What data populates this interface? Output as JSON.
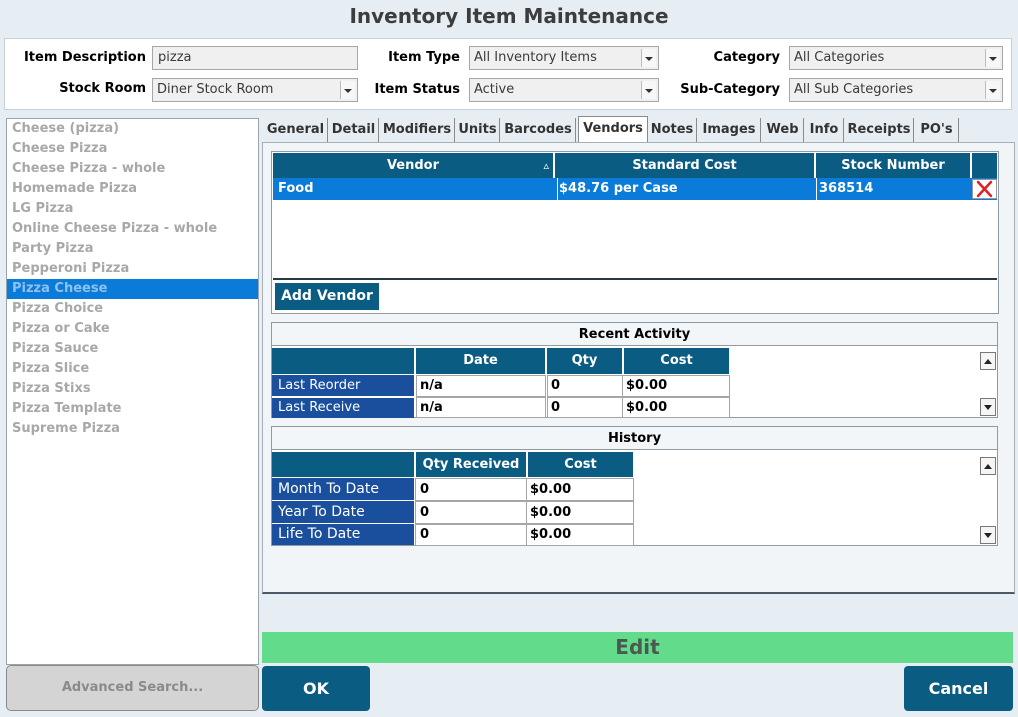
{
  "window": {
    "title": "Inventory Item Maintenance"
  },
  "filters": {
    "item_description_label": "Item Description",
    "item_description_value": "pizza",
    "item_type_label": "Item Type",
    "item_type_value": "All Inventory Items",
    "category_label": "Category",
    "category_value": "All Categories",
    "stock_room_label": "Stock Room",
    "stock_room_value": "Diner Stock Room",
    "item_status_label": "Item Status",
    "item_status_value": "Active",
    "sub_category_label": "Sub-Category",
    "sub_category_value": "All Sub Categories"
  },
  "items": [
    {
      "label": "Cheese (pizza)"
    },
    {
      "label": "Cheese Pizza"
    },
    {
      "label": "Cheese Pizza - whole"
    },
    {
      "label": "Homemade Pizza"
    },
    {
      "label": "LG Pizza"
    },
    {
      "label": "Online Cheese Pizza - whole"
    },
    {
      "label": "Party Pizza"
    },
    {
      "label": "Pepperoni Pizza"
    },
    {
      "label": "Pizza Cheese",
      "selected": true
    },
    {
      "label": "Pizza Choice"
    },
    {
      "label": "Pizza or Cake"
    },
    {
      "label": "Pizza Sauce"
    },
    {
      "label": "Pizza Slice"
    },
    {
      "label": "Pizza Stixs"
    },
    {
      "label": "Pizza Template"
    },
    {
      "label": "Supreme Pizza"
    }
  ],
  "tabs": [
    {
      "label": "General"
    },
    {
      "label": "Detail"
    },
    {
      "label": "Modifiers"
    },
    {
      "label": "Units"
    },
    {
      "label": "Barcodes"
    },
    {
      "label": "Vendors",
      "active": true
    },
    {
      "label": "Notes"
    },
    {
      "label": "Images"
    },
    {
      "label": "Web"
    },
    {
      "label": "Info"
    },
    {
      "label": "Receipts"
    },
    {
      "label": "PO's"
    }
  ],
  "vendors": {
    "columns": [
      "Vendor",
      "Standard Cost",
      "Stock Number"
    ],
    "sort_indicator": "▵",
    "rows": [
      {
        "vendor": "Food",
        "standard_cost": "$48.76 per Case",
        "stock_number": "368514"
      }
    ],
    "add_vendor_label": "Add Vendor"
  },
  "recent_activity": {
    "title": "Recent Activity",
    "columns": [
      "Date",
      "Qty",
      "Cost"
    ],
    "rows": [
      {
        "label": "Last Reorder",
        "date": "n/a",
        "qty": "0",
        "cost": "$0.00"
      },
      {
        "label": "Last Receive",
        "date": "n/a",
        "qty": "0",
        "cost": "$0.00"
      }
    ]
  },
  "history": {
    "title": "History",
    "columns": [
      "Qty Received",
      "Cost"
    ],
    "rows": [
      {
        "label": "Month To Date",
        "qty": "0",
        "cost": "$0.00"
      },
      {
        "label": "Year To Date",
        "qty": "0",
        "cost": "$0.00"
      },
      {
        "label": "Life To Date",
        "qty": "0",
        "cost": "$0.00"
      }
    ]
  },
  "mode_bar": {
    "label": "Edit",
    "color": "#62dc8a"
  },
  "buttons": {
    "advanced_search": "Advanced Search...",
    "ok": "OK",
    "cancel": "Cancel"
  },
  "icons": {
    "delete_vendor": "red-x-icon"
  },
  "colors": {
    "accent": "#0a5c82",
    "selection": "#0a7bd9",
    "row_header": "#1a4f9e"
  }
}
